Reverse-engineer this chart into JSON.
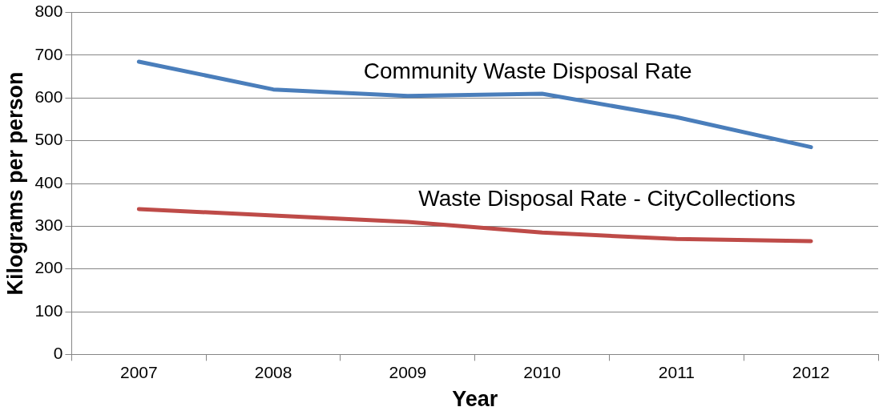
{
  "chart_data": {
    "type": "line",
    "xlabel": "Year",
    "ylabel": "Kilograms per person",
    "categories": [
      "2007",
      "2008",
      "2009",
      "2010",
      "2011",
      "2012"
    ],
    "series": [
      {
        "name": "Community Waste Disposal Rate",
        "color": "#4a7ebb",
        "values": [
          685,
          620,
          605,
          610,
          555,
          485
        ]
      },
      {
        "name": "Waste Disposal Rate - CityCollections",
        "color": "#be4b48",
        "values": [
          340,
          325,
          310,
          285,
          270,
          265
        ]
      }
    ],
    "ylim": [
      0,
      800
    ],
    "yticks": [
      0,
      100,
      200,
      300,
      400,
      500,
      600,
      700,
      800
    ],
    "grid": "y",
    "legend": false,
    "marker": "none",
    "line_style": "solid"
  }
}
